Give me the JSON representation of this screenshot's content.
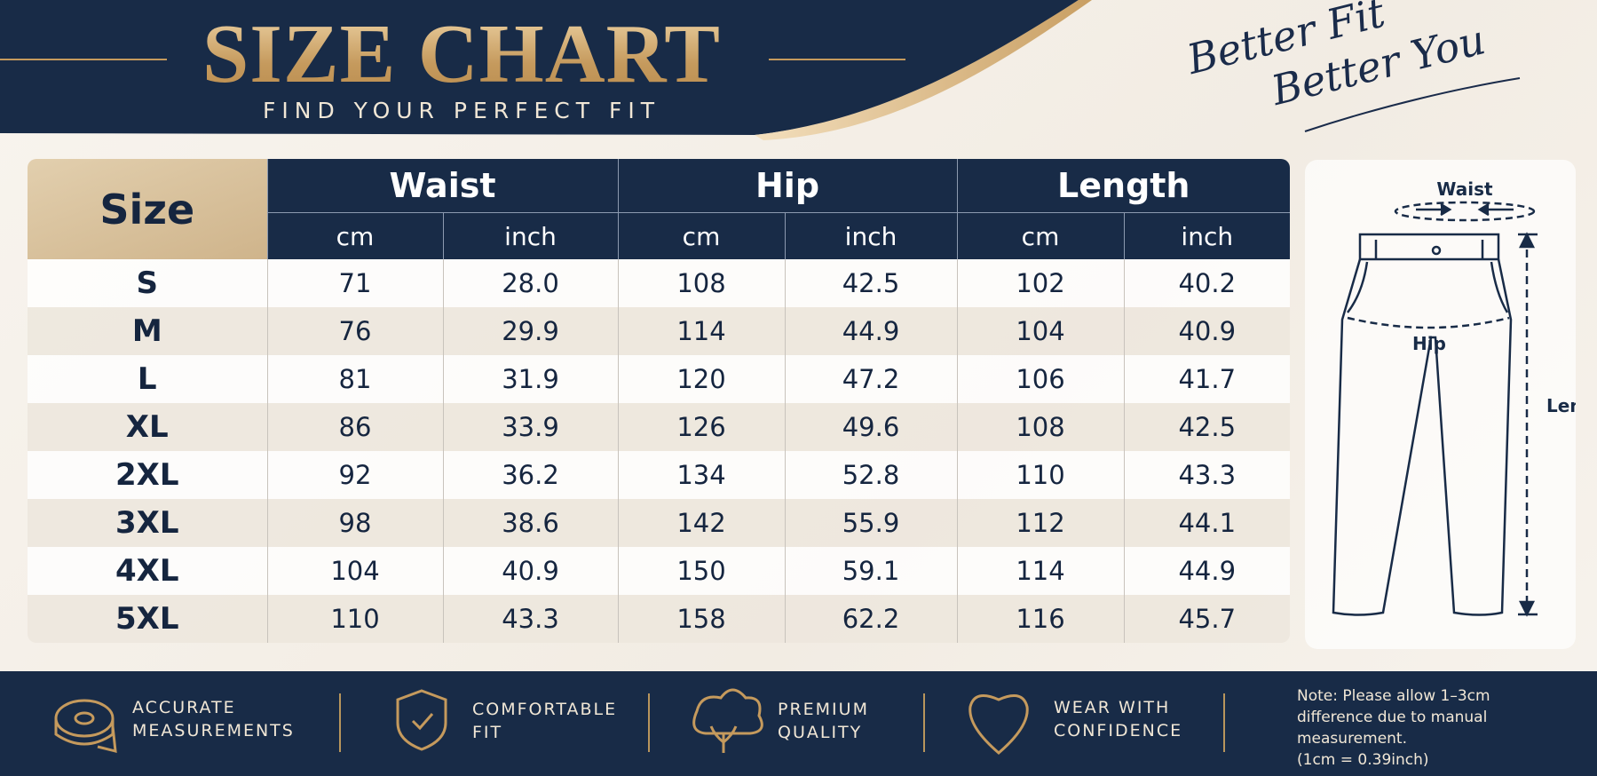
{
  "header": {
    "title": "SIZE CHART",
    "subtitle": "FIND YOUR PERFECT FIT",
    "tagline": [
      "Better Fit",
      "Better You"
    ]
  },
  "table": {
    "size_label": "Size",
    "groups": [
      "Waist",
      "Hip",
      "Length"
    ],
    "units": [
      "cm",
      "inch",
      "cm",
      "inch",
      "cm",
      "inch"
    ],
    "rows": [
      [
        "S",
        "71",
        "28.0",
        "108",
        "42.5",
        "102",
        "40.2"
      ],
      [
        "M",
        "76",
        "29.9",
        "114",
        "44.9",
        "104",
        "40.9"
      ],
      [
        "L",
        "81",
        "31.9",
        "120",
        "47.2",
        "106",
        "41.7"
      ],
      [
        "XL",
        "86",
        "33.9",
        "126",
        "49.6",
        "108",
        "42.5"
      ],
      [
        "2XL",
        "92",
        "36.2",
        "134",
        "52.8",
        "110",
        "43.3"
      ],
      [
        "3XL",
        "98",
        "38.6",
        "142",
        "55.9",
        "112",
        "44.1"
      ],
      [
        "4XL",
        "104",
        "40.9",
        "150",
        "59.1",
        "114",
        "44.9"
      ],
      [
        "5XL",
        "110",
        "43.3",
        "158",
        "62.2",
        "116",
        "45.7"
      ]
    ]
  },
  "diagram": {
    "waist": "Waist",
    "hip": "Hip",
    "length": "Length"
  },
  "features": [
    {
      "lines": [
        "ACCURATE",
        "MEASUREMENTS"
      ]
    },
    {
      "lines": [
        "COMFORTABLE",
        "FIT"
      ]
    },
    {
      "lines": [
        "PREMIUM",
        "QUALITY"
      ]
    },
    {
      "lines": [
        "WEAR WITH",
        "CONFIDENCE"
      ]
    }
  ],
  "note": [
    "Note: Please allow 1–3cm",
    "difference due to manual measurement.",
    "(1cm = 0.39inch)"
  ]
}
